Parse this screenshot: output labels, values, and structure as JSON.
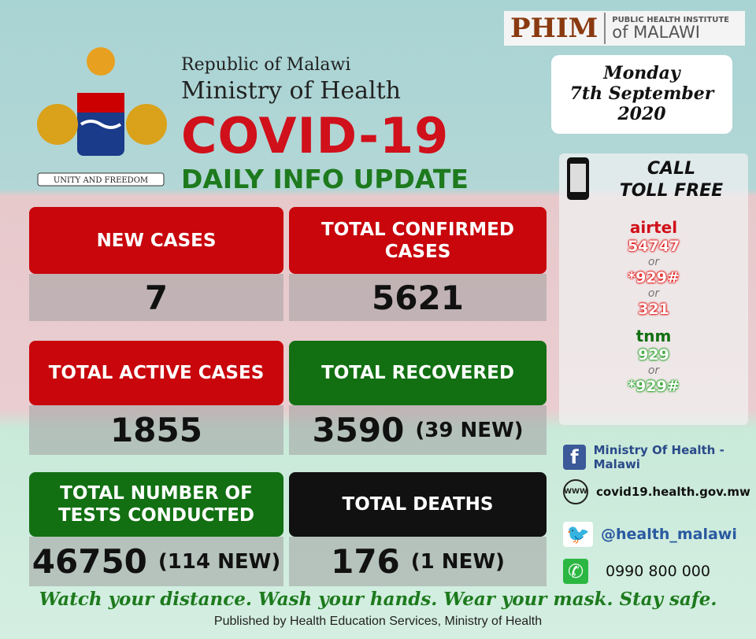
{
  "header": {
    "republic": "Republic of Malawi",
    "ministry": "Ministry of Health",
    "title": "COVID-19",
    "subtitle": "DAILY INFO UPDATE",
    "crest_motto": "UNITY AND FREEDOM"
  },
  "logo": {
    "name": "PHIM",
    "line1": "PUBLIC HEALTH INSTITUTE",
    "line2": "of MALAWI"
  },
  "date": {
    "day": "Monday",
    "date": "7th September",
    "year": "2020"
  },
  "stats": [
    {
      "label": "NEW CASES",
      "value": "7",
      "extra": "",
      "color": "#c8060c"
    },
    {
      "label": "TOTAL CONFIRMED CASES",
      "value": "5621",
      "extra": "",
      "color": "#c8060c"
    },
    {
      "label": "TOTAL ACTIVE CASES",
      "value": "1855",
      "extra": "",
      "color": "#c8060c"
    },
    {
      "label": "TOTAL RECOVERED",
      "value": "3590",
      "extra": "(39 NEW)",
      "color": "#127012"
    },
    {
      "label": "TOTAL NUMBER OF TESTS CONDUCTED",
      "value": "46750",
      "extra": "(114 NEW)",
      "color": "#127012"
    },
    {
      "label": "TOTAL DEATHS",
      "value": "176",
      "extra": "(1 NEW)",
      "color": "#111111"
    }
  ],
  "tollfree": {
    "title1": "CALL",
    "title2": "TOLL FREE",
    "airtel": "airtel",
    "airtel_numbers": [
      "54747",
      "*929#",
      "321"
    ],
    "or": "or",
    "tnm": "tnm",
    "tnm_numbers": [
      "929",
      "*929#"
    ]
  },
  "contacts": {
    "facebook": "Ministry Of Health - Malawi",
    "web_icon": "WWW",
    "website": "covid19.health.gov.mw",
    "twitter": "@health_malawi",
    "whatsapp": "0990 800 000"
  },
  "footer": {
    "motto": "Watch your distance. Wash your hands. Wear your mask. Stay safe.",
    "published": "Published by Health Education Services, Ministry of Health"
  }
}
